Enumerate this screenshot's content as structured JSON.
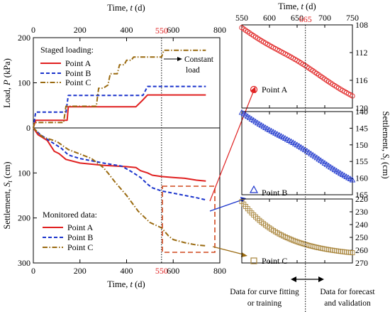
{
  "chart_data": [
    {
      "id": "main",
      "type": "line",
      "top_panel": {
        "ylabel_prefix": "Load, ",
        "ylabel_var": "P",
        "ylabel_unit": " (kPa)",
        "ylim": [
          0,
          200
        ],
        "y_ticks": [
          "0",
          "100",
          "200"
        ],
        "legend_title": "Staged loading:",
        "annotation_constant_load": [
          "Constant",
          "load"
        ],
        "series": [
          {
            "name": "Point A",
            "color": "#e02020",
            "dash": "solid",
            "x": [
              0,
              10,
              145,
              150,
              440,
              470,
              490,
              550,
              740
            ],
            "y": [
              0,
              17,
              17,
              47,
              47,
              62,
              73,
              73,
              73
            ]
          },
          {
            "name": "Point B",
            "color": "#1a33cc",
            "dash": "dash",
            "x": [
              0,
              10,
              140,
              150,
              470,
              490,
              550,
              740
            ],
            "y": [
              0,
              35,
              35,
              72,
              72,
              92,
              92,
              92
            ]
          },
          {
            "name": "Point C",
            "color": "#9a6a10",
            "dash": "dashdot",
            "x": [
              0,
              5,
              130,
              140,
              270,
              280,
              300,
              320,
              330,
              360,
              370,
              390,
              400,
              420,
              430,
              450,
              460,
              550,
              560,
              740
            ],
            "y": [
              0,
              12,
              12,
              48,
              48,
              88,
              88,
              95,
              120,
              120,
              140,
              140,
              150,
              150,
              157,
              157,
              157,
              157,
              172,
              172
            ]
          }
        ]
      },
      "bottom_panel": {
        "ylabel_prefix": "Settlement, ",
        "ylabel_var": "S",
        "ylabel_sub": "t",
        "ylabel_unit": " (cm)",
        "ylim": [
          0,
          300
        ],
        "y_inverted": true,
        "y_ticks": [
          "0",
          "100",
          "200",
          "300"
        ],
        "legend_title": "Monitored data:",
        "series": [
          {
            "name": "Point A",
            "color": "#e02020",
            "dash": "solid",
            "x": [
              0,
              20,
              60,
              90,
              110,
              140,
              200,
              300,
              400,
              440,
              460,
              490,
              510,
              550,
              600,
              650,
              700,
              740
            ],
            "y": [
              0,
              15,
              28,
              52,
              57,
              70,
              78,
              83,
              86,
              88,
              95,
              100,
              105,
              108,
              110,
              112,
              116,
              118
            ]
          },
          {
            "name": "Point B",
            "color": "#1a33cc",
            "dash": "dash",
            "x": [
              0,
              30,
              80,
              120,
              150,
              200,
              300,
              380,
              420,
              460,
              490,
              510,
              550,
              600,
              650,
              700,
              740
            ],
            "y": [
              0,
              15,
              32,
              45,
              60,
              68,
              78,
              85,
              97,
              110,
              125,
              133,
              140,
              145,
              150,
              155,
              160
            ]
          },
          {
            "name": "Point C",
            "color": "#9a6a10",
            "dash": "dashdot",
            "x": [
              0,
              40,
              100,
              150,
              200,
              250,
              300,
              320,
              350,
              400,
              450,
              500,
              550,
              580,
              600,
              650,
              700,
              740
            ],
            "y": [
              0,
              20,
              30,
              48,
              58,
              68,
              88,
              100,
              120,
              150,
              185,
              210,
              222,
              240,
              248,
              255,
              260,
              262
            ]
          }
        ]
      },
      "xlabel_prefix": "Time, ",
      "xlabel_var": "t",
      "xlabel_unit": " (d)",
      "xlim": [
        0,
        800
      ],
      "x_ticks": [
        "0",
        "200",
        "400",
        "600",
        "800"
      ],
      "marker_line_label": "550",
      "marker_line_x": 550
    },
    {
      "id": "right",
      "type": "scatter",
      "xlabel_prefix": "Time, ",
      "xlabel_var": "t",
      "xlabel_unit": " (d)",
      "xlim": [
        550,
        750
      ],
      "x_ticks": [
        "550",
        "600",
        "650",
        "700",
        "750"
      ],
      "split_label": "665",
      "split_x": 665,
      "ylabel_prefix": "Settlement, ",
      "ylabel_var": "S",
      "ylabel_sub": "t",
      "ylabel_unit": " (cm)",
      "panels": [
        {
          "name": "Point A",
          "marker": "circle",
          "color": "#e02020",
          "ylim": [
            108,
            120
          ],
          "y_ticks": [
            "108",
            "112",
            "116",
            "120"
          ],
          "start": 108.4,
          "end": 118.2,
          "curve": "linear"
        },
        {
          "name": "Point B",
          "marker": "triangle",
          "color": "#1a33cc",
          "ylim": [
            140,
            165
          ],
          "y_ticks": [
            "140",
            "145",
            "150",
            "155",
            "160",
            "165"
          ],
          "start": 140.2,
          "end": 160.4,
          "curve": "linear"
        },
        {
          "name": "Point C",
          "marker": "square",
          "color": "#a8843a",
          "ylim": [
            220,
            270
          ],
          "y_ticks": [
            "220",
            "230",
            "240",
            "250",
            "260",
            "270"
          ],
          "start": 222.0,
          "end": 262.0,
          "curve": "decay"
        }
      ],
      "bottom_note_left": [
        "Data for curve fitting",
        "or training"
      ],
      "bottom_note_right": [
        "Data for forecast",
        "and validation"
      ]
    }
  ]
}
